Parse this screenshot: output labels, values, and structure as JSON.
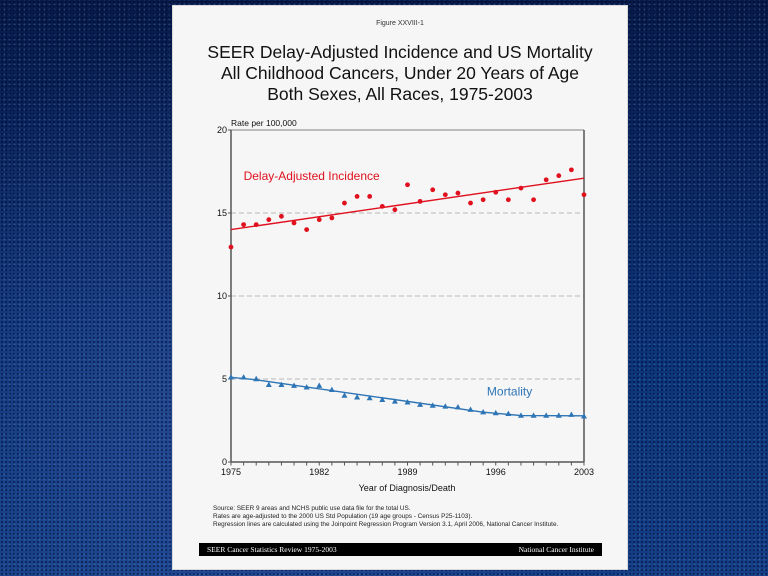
{
  "figure_label": "Figure XXVIII-1",
  "title_lines": [
    "SEER Delay-Adjusted Incidence and US Mortality",
    "All Childhood Cancers, Under 20 Years of Age",
    "Both Sexes, All Races, 1975-2003"
  ],
  "notes": [
    "Source: SEER 9 areas and NCHS public use data file for the total US.",
    "Rates are age-adjusted to the 2000 US Std Population (19 age groups - Census P25-1103).",
    "Regression lines are calculated using the Joinpoint Regression Program Version 3.1, April 2006, National Cancer Institute."
  ],
  "footer": {
    "left": "SEER Cancer Statistics Review 1975-2003",
    "right": "National Cancer Institute"
  },
  "colors": {
    "incidence": "#e0101e",
    "mortality": "#2e75b6",
    "grid": "#b8b8b8",
    "axis": "#555555",
    "footer_bg": "#000000"
  },
  "chart_data": {
    "type": "scatter",
    "title": "SEER Delay-Adjusted Incidence and US Mortality",
    "xlabel": "Year of Diagnosis/Death",
    "ylabel": "Rate per 100,000",
    "xlim": [
      1975,
      2003
    ],
    "ylim": [
      0,
      20
    ],
    "x_ticks": [
      1975,
      1982,
      1989,
      1996,
      2003
    ],
    "y_ticks": [
      0,
      5,
      10,
      15,
      20
    ],
    "grid": "horizontal dashed at 5, 10, 15",
    "x": [
      1975,
      1976,
      1977,
      1978,
      1979,
      1980,
      1981,
      1982,
      1983,
      1984,
      1985,
      1986,
      1987,
      1988,
      1989,
      1990,
      1991,
      1992,
      1993,
      1994,
      1995,
      1996,
      1997,
      1998,
      1999,
      2000,
      2001,
      2002,
      2003
    ],
    "series": [
      {
        "name": "Delay-Adjusted Incidence",
        "marker": "circle",
        "values": [
          12.95,
          14.3,
          14.3,
          14.6,
          14.8,
          14.4,
          14.0,
          14.6,
          14.7,
          15.6,
          16.0,
          16.0,
          15.4,
          15.2,
          16.7,
          15.7,
          16.4,
          16.1,
          16.2,
          15.6,
          15.8,
          16.25,
          15.8,
          16.5,
          15.8,
          17.0,
          17.25,
          17.6,
          16.1
        ],
        "regression": {
          "x": [
            1975,
            2003
          ],
          "y": [
            14.0,
            17.1
          ]
        },
        "label": "Delay-Adjusted Incidence",
        "label_at": {
          "x": 1976,
          "y": 17.0
        }
      },
      {
        "name": "Mortality",
        "marker": "triangle",
        "values": [
          5.1,
          5.1,
          5.0,
          4.65,
          4.65,
          4.6,
          4.5,
          4.6,
          4.35,
          4.0,
          3.9,
          3.85,
          3.75,
          3.65,
          3.6,
          3.45,
          3.4,
          3.35,
          3.3,
          3.15,
          3.0,
          2.95,
          2.9,
          2.8,
          2.8,
          2.8,
          2.8,
          2.85,
          2.75
        ],
        "regression": {
          "x": [
            1975,
            1977,
            1995,
            1998,
            2003
          ],
          "y": [
            5.1,
            4.95,
            3.0,
            2.8,
            2.78
          ]
        },
        "label": "Mortality",
        "label_at": {
          "x": 1995.3,
          "y": 4.0
        }
      }
    ]
  }
}
